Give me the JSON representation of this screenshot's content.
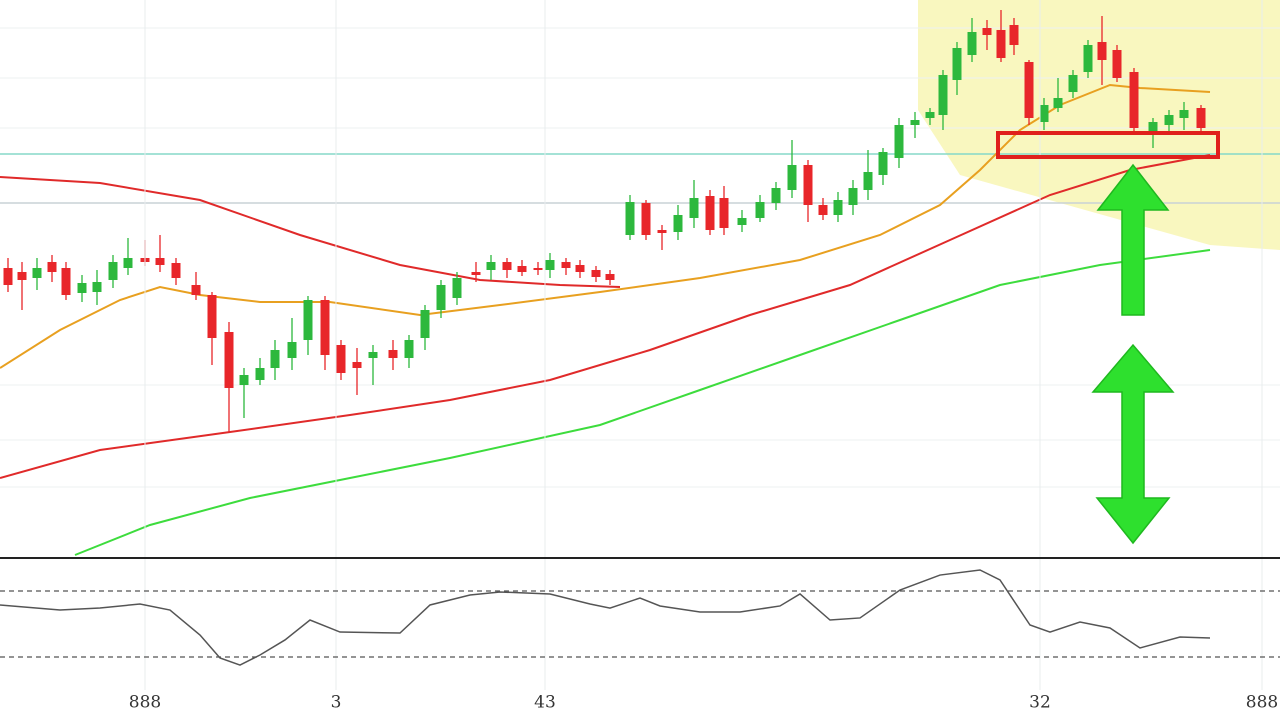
{
  "chart_data": [
    {
      "type": "candlestick",
      "xlim": [
        0,
        128
      ],
      "ylim": [
        0,
        111
      ],
      "grid": true,
      "up_color": "#2db83d",
      "down_color": "#e8262a",
      "x": [
        0.8,
        2.2,
        3.7,
        5.2,
        6.6,
        8.2,
        9.7,
        11.3,
        12.8,
        14.5,
        16,
        17.6,
        19.6,
        21.2,
        22.9,
        24.4,
        26,
        27.5,
        29.2,
        30.8,
        32.5,
        34.1,
        35.7,
        37.3,
        39.3,
        40.9,
        42.5,
        44.1,
        45.7,
        47.6,
        49.1,
        50.7,
        52.2,
        53.8,
        55,
        56.6,
        58,
        59.6,
        61,
        63,
        64.6,
        66.2,
        67.8,
        69.4,
        71,
        72.4,
        74.2,
        76,
        77.6,
        79.2,
        80.8,
        82.3,
        83.8,
        85.3,
        86.8,
        88.3,
        89.9,
        91.5,
        93,
        94.3,
        95.7,
        97.2,
        98.7,
        100.1,
        101.4,
        102.9,
        104.4,
        105.8,
        107.3,
        108.8,
        110.2,
        111.7,
        113.4,
        115.3,
        116.9,
        118.4,
        120.1
      ],
      "open": [
        57.4,
        56.6,
        55.4,
        58.6,
        57.4,
        52.4,
        52.6,
        55,
        57.4,
        59.4,
        59.4,
        58.4,
        54,
        52,
        44.6,
        34,
        35,
        37.4,
        39.4,
        43,
        51,
        42,
        38.6,
        39.4,
        41,
        39.4,
        43.4,
        49,
        51.4,
        56.6,
        57,
        58.6,
        57.8,
        57.4,
        57,
        58.6,
        58,
        57,
        56.2,
        64,
        70.4,
        65,
        64.6,
        67.4,
        71.8,
        71.4,
        66,
        67.4,
        70.4,
        73,
        78,
        70,
        68,
        70,
        73,
        76,
        79.4,
        86,
        87.4,
        88,
        95,
        100,
        105.4,
        105,
        106,
        98.6,
        86.6,
        89.4,
        92.6,
        96.6,
        102.6,
        101,
        96.6,
        84.6,
        86,
        87.4,
        89.4
      ],
      "high": [
        59.4,
        58.6,
        59.4,
        60,
        58.6,
        56,
        57,
        60,
        63.4,
        63,
        64,
        59.4,
        56.6,
        52.6,
        46.6,
        37.4,
        39.4,
        43,
        47.4,
        51.8,
        51.8,
        43,
        41.4,
        42,
        43,
        44,
        50,
        55,
        56.6,
        58.6,
        60,
        59.4,
        59,
        58.6,
        60.4,
        59.4,
        59,
        57.8,
        57,
        72,
        71,
        66,
        70,
        75,
        73,
        73.8,
        69,
        72,
        74.6,
        83,
        79,
        71.4,
        72.6,
        75,
        81,
        81.4,
        87.4,
        88.6,
        89.4,
        97,
        102.6,
        107.4,
        107,
        109,
        107.4,
        99,
        91.4,
        95.4,
        97,
        103,
        107.8,
        102,
        97.4,
        87.4,
        89,
        90.6,
        90
      ],
      "low": [
        52.6,
        49,
        53,
        54.6,
        51,
        50.6,
        50,
        53.4,
        56,
        57.8,
        56.6,
        54,
        51,
        38,
        24.6,
        27.4,
        34,
        35,
        37,
        40,
        37,
        35,
        32,
        34,
        37,
        37.4,
        41,
        47.4,
        50,
        54.6,
        55,
        55.4,
        55.8,
        56,
        55.4,
        56,
        55.4,
        54.6,
        54,
        63,
        63,
        61,
        63,
        65.4,
        64,
        64,
        64.6,
        66.6,
        69,
        71.4,
        66.6,
        67,
        66.6,
        68,
        71,
        74,
        77.4,
        83.4,
        86,
        85,
        92,
        98.6,
        101,
        98.6,
        100,
        86,
        85,
        88.6,
        91.4,
        95.4,
        94,
        94.6,
        84.6,
        81.4,
        84,
        85,
        84.6
      ],
      "close": [
        54,
        55,
        57.4,
        56.6,
        52,
        54.4,
        54.6,
        58.6,
        59.4,
        58.6,
        58,
        55.4,
        52,
        43.4,
        33.4,
        36,
        37.4,
        41,
        42.6,
        51,
        40,
        36.4,
        37.4,
        40.6,
        39.4,
        43,
        49,
        54,
        55.4,
        56,
        58.6,
        57,
        56.6,
        57,
        59,
        57.4,
        56.6,
        55.6,
        55,
        70.6,
        64,
        64.4,
        68,
        71.4,
        65,
        65.4,
        67.4,
        70.6,
        73.4,
        78,
        70,
        68,
        71,
        73.4,
        76.6,
        80.6,
        86,
        87,
        88.6,
        96,
        101.4,
        104.6,
        104,
        99.4,
        102,
        87.4,
        90,
        91.4,
        96,
        102,
        99,
        95.4,
        85.4,
        86.6,
        88,
        89,
        85.4
      ],
      "overlays": [
        {
          "color": "#e02a2a",
          "x": [
            0,
            10,
            20,
            30,
            40,
            48,
            56,
            62
          ],
          "values": [
            75.6,
            74.4,
            71,
            64,
            58,
            55,
            54,
            53.6
          ]
        },
        {
          "color": "#e8a020",
          "x": [
            0,
            6,
            12,
            16,
            20,
            26,
            33,
            42,
            50,
            60,
            70,
            80,
            88,
            94,
            98,
            102,
            106,
            111,
            114,
            121
          ],
          "values": [
            37.4,
            45,
            51,
            53.6,
            52,
            50.6,
            50.6,
            48,
            50,
            52.6,
            55.4,
            59,
            64,
            70,
            77,
            85,
            90,
            94,
            93.4,
            92.6
          ]
        },
        {
          "color": "#e02a2a",
          "x": [
            0,
            10,
            23,
            35,
            45,
            55,
            65,
            75,
            85,
            95,
            105,
            113,
            121
          ],
          "values": [
            15.4,
            21,
            24.6,
            28,
            31,
            35,
            41,
            48,
            54,
            63,
            72,
            77,
            80
          ]
        },
        {
          "color": "#3ddc3d",
          "x": [
            7.5,
            15,
            25,
            35,
            45,
            60,
            70,
            80,
            90,
            100,
            110,
            121
          ],
          "values": [
            0,
            6,
            11.4,
            15.4,
            19.4,
            26,
            33,
            40,
            47,
            54,
            58,
            61
          ]
        }
      ],
      "hlines": [
        {
          "value": 80.2,
          "color": "#86d8c8"
        },
        {
          "value": 70.4,
          "color": "#c9d2d6"
        }
      ]
    },
    {
      "type": "line",
      "xlim": [
        0,
        128
      ],
      "ylim": [
        0,
        100
      ],
      "color": "#555555",
      "levels": [
        20,
        80
      ],
      "x": [
        0,
        6,
        10,
        14,
        17,
        20,
        22,
        24,
        26,
        28.5,
        31,
        34,
        40,
        43,
        47,
        50,
        55,
        59,
        61,
        64,
        66,
        70,
        74,
        78,
        80,
        83,
        86,
        90,
        94,
        98,
        100,
        103,
        105,
        108,
        111,
        114,
        118,
        121
      ],
      "values": [
        67.3,
        62.7,
        64.5,
        68.2,
        62.7,
        40,
        19.1,
        12.7,
        21.8,
        35.5,
        53.6,
        42.7,
        41.8,
        67.3,
        76.4,
        79.1,
        77.3,
        68.2,
        64.5,
        73.6,
        66.4,
        60.9,
        60.9,
        66.4,
        77.3,
        53.6,
        55.5,
        80.9,
        94.5,
        99.1,
        90,
        49.1,
        42.7,
        51.8,
        46.4,
        28.2,
        38.2,
        37.3
      ],
      "xticks": [
        {
          "value": 14.5,
          "label": "888"
        },
        {
          "value": 33.6,
          "label": "3"
        },
        {
          "value": 54.5,
          "label": "43"
        },
        {
          "value": 104,
          "label": "32"
        },
        {
          "value": 126.2,
          "label": "888"
        }
      ]
    }
  ]
}
